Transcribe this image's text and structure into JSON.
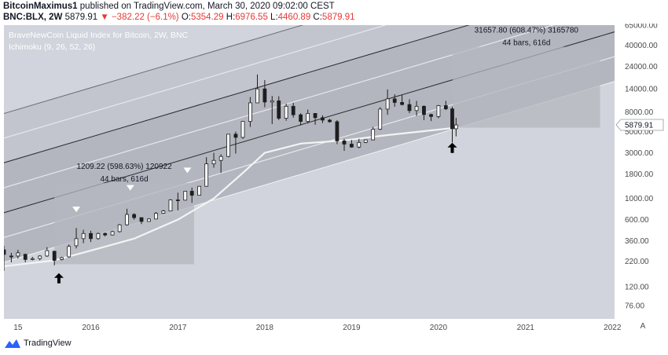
{
  "header": {
    "author": "BitcoinMaximus1",
    "published_text": "published on TradingView.com, March 30, 2020 09:02:00 CEST",
    "symbol": "BNC:BLX, 2W",
    "last": "5879.91",
    "change": "−382.22 (−6.1%)",
    "o_label": "O:",
    "o_value": "5354.29",
    "h_label": "H:",
    "h_value": "6976.55",
    "l_label": "L:",
    "l_value": "4460.89",
    "c_label": "C:",
    "c_value": "5879.91",
    "change_arrow": "▼"
  },
  "branding": {
    "name": "TradingView"
  },
  "colors": {
    "plot_bg": "#d1d4dc",
    "channel_dark": "#b3b6bf",
    "channel_mid": "#c2c5cd",
    "box_fill": "#b4b7bf",
    "candle": "#1e1e1e",
    "ma_line": "#f4f4f4",
    "price_tag": "#ffffff",
    "text_dark": "#131722"
  },
  "chart_data": {
    "type": "candlestick",
    "title": "BraveNewCoin Liquid Index for Bitcoin, 2W, BNC",
    "indicator": "Ichimoku (9, 26, 52, 26)",
    "y_scale": "log",
    "ylim": [
      55,
      65000
    ],
    "xlim": [
      "2015-01-01",
      "2022-01-10"
    ],
    "y_ticks": [
      "76.00",
      "120.00",
      "220.00",
      "360.00",
      "600.00",
      "1000.00",
      "1800.00",
      "3000.00",
      "5000.00",
      "8000.00",
      "14000.00",
      "24000.00",
      "40000.00",
      "65000.00"
    ],
    "x_ticks": [
      {
        "date": "2015-03-01",
        "label": "15"
      },
      {
        "date": "2016-01-01",
        "label": "2016"
      },
      {
        "date": "2017-01-01",
        "label": "2017"
      },
      {
        "date": "2018-01-01",
        "label": "2018"
      },
      {
        "date": "2019-01-01",
        "label": "2019"
      },
      {
        "date": "2020-01-01",
        "label": "2020"
      },
      {
        "date": "2021-01-01",
        "label": "2021"
      },
      {
        "date": "2022-01-01",
        "label": "2022"
      }
    ],
    "axis_badge": "A",
    "last_price_label": "5879.91",
    "last_price": 5879.91,
    "ma": [
      [
        "2015-01-01",
        195
      ],
      [
        "2015-08-01",
        225
      ],
      [
        "2016-01-01",
        285
      ],
      [
        "2016-07-01",
        380
      ],
      [
        "2017-01-01",
        600
      ],
      [
        "2017-06-01",
        1000
      ],
      [
        "2017-10-01",
        1850
      ],
      [
        "2018-01-01",
        3000
      ],
      [
        "2018-06-01",
        3750
      ],
      [
        "2018-12-01",
        4050
      ],
      [
        "2019-06-01",
        4600
      ],
      [
        "2020-01-01",
        5250
      ],
      [
        "2020-03-15",
        5500
      ]
    ],
    "candles": [
      [
        "2015-01-01",
        290,
        320,
        175,
        260
      ],
      [
        "2015-02-01",
        250,
        270,
        215,
        245
      ],
      [
        "2015-03-01",
        250,
        290,
        235,
        270
      ],
      [
        "2015-04-01",
        260,
        265,
        215,
        230
      ],
      [
        "2015-05-01",
        230,
        245,
        225,
        235
      ],
      [
        "2015-06-01",
        235,
        255,
        225,
        250
      ],
      [
        "2015-07-01",
        250,
        310,
        245,
        285
      ],
      [
        "2015-08-01",
        280,
        285,
        200,
        225
      ],
      [
        "2015-09-01",
        230,
        245,
        225,
        240
      ],
      [
        "2015-10-01",
        245,
        330,
        240,
        315
      ],
      [
        "2015-11-01",
        320,
        490,
        300,
        380
      ],
      [
        "2015-12-01",
        380,
        470,
        340,
        430
      ],
      [
        "2016-01-01",
        430,
        460,
        350,
        380
      ],
      [
        "2016-02-01",
        380,
        440,
        370,
        430
      ],
      [
        "2016-03-01",
        430,
        440,
        400,
        415
      ],
      [
        "2016-04-01",
        415,
        460,
        410,
        450
      ],
      [
        "2016-05-01",
        450,
        540,
        440,
        530
      ],
      [
        "2016-06-01",
        530,
        780,
        520,
        680
      ],
      [
        "2016-07-01",
        680,
        700,
        600,
        630
      ],
      [
        "2016-08-01",
        630,
        630,
        540,
        575
      ],
      [
        "2016-09-01",
        575,
        620,
        570,
        610
      ],
      [
        "2016-10-01",
        610,
        720,
        605,
        700
      ],
      [
        "2016-11-01",
        700,
        760,
        690,
        740
      ],
      [
        "2016-12-01",
        740,
        980,
        740,
        965
      ],
      [
        "2017-01-01",
        965,
        1150,
        750,
        960
      ],
      [
        "2017-02-01",
        960,
        1200,
        950,
        1190
      ],
      [
        "2017-03-01",
        1190,
        1300,
        900,
        1080
      ],
      [
        "2017-04-01",
        1080,
        1350,
        1070,
        1340
      ],
      [
        "2017-05-01",
        1340,
        2700,
        1330,
        2300
      ],
      [
        "2017-06-01",
        2300,
        3000,
        2100,
        2500
      ],
      [
        "2017-07-01",
        2500,
        2900,
        1850,
        2750
      ],
      [
        "2017-08-01",
        2750,
        4700,
        2700,
        4700
      ],
      [
        "2017-09-01",
        4700,
        5000,
        2950,
        4350
      ],
      [
        "2017-10-01",
        4350,
        6400,
        4200,
        6400
      ],
      [
        "2017-11-01",
        6400,
        11500,
        5600,
        10000
      ],
      [
        "2017-12-01",
        10000,
        19800,
        10000,
        14000
      ],
      [
        "2018-01-01",
        14000,
        17300,
        9000,
        10200
      ],
      [
        "2018-02-01",
        10200,
        11800,
        6000,
        10500
      ],
      [
        "2018-03-01",
        10500,
        11700,
        6600,
        6900
      ],
      [
        "2018-04-01",
        6900,
        9800,
        6500,
        9200
      ],
      [
        "2018-05-01",
        9200,
        10000,
        7000,
        7500
      ],
      [
        "2018-06-01",
        7500,
        7800,
        5800,
        6400
      ],
      [
        "2018-07-01",
        6400,
        8500,
        6100,
        7750
      ],
      [
        "2018-08-01",
        7750,
        7800,
        5900,
        7000
      ],
      [
        "2018-09-01",
        7000,
        7400,
        6150,
        6600
      ],
      [
        "2018-10-01",
        6600,
        6800,
        6200,
        6350
      ],
      [
        "2018-11-01",
        6350,
        6600,
        3700,
        4000
      ],
      [
        "2018-12-01",
        4000,
        4200,
        3150,
        3700
      ],
      [
        "2019-01-01",
        3700,
        4100,
        3400,
        3450
      ],
      [
        "2019-02-01",
        3450,
        4200,
        3350,
        3850
      ],
      [
        "2019-03-01",
        3850,
        4150,
        3800,
        4100
      ],
      [
        "2019-04-01",
        4100,
        5600,
        4050,
        5300
      ],
      [
        "2019-05-01",
        5300,
        9000,
        5200,
        8600
      ],
      [
        "2019-06-01",
        8600,
        13800,
        7500,
        11000
      ],
      [
        "2019-07-01",
        11000,
        12300,
        9100,
        10100
      ],
      [
        "2019-08-01",
        10100,
        12200,
        9400,
        9600
      ],
      [
        "2019-09-01",
        9600,
        10900,
        7800,
        8300
      ],
      [
        "2019-10-01",
        8300,
        10500,
        7300,
        9200
      ],
      [
        "2019-11-01",
        9200,
        9400,
        6600,
        7550
      ],
      [
        "2019-12-01",
        7550,
        7700,
        6450,
        7200
      ],
      [
        "2020-01-01",
        7200,
        9500,
        6900,
        9350
      ],
      [
        "2020-02-01",
        9350,
        10500,
        8400,
        8650
      ],
      [
        "2020-02-28",
        8650,
        9100,
        3850,
        5360
      ],
      [
        "2020-03-15",
        5354.29,
        6976.55,
        4460.89,
        5879.91
      ]
    ],
    "channel": {
      "base_line": [
        [
          "2015-01-01",
          215
        ],
        [
          "2022-01-01",
          16500
        ]
      ],
      "line_ratios": [
        1,
        3.3,
        11,
        36
      ]
    },
    "boxes": [
      {
        "x0": "2015-08-01",
        "x1": "2017-03-10",
        "y0": 205,
        "y1": 1450,
        "label_main": "1209.22 (598.63%) 120922",
        "label_sub": "44 bars, 616d"
      },
      {
        "x0": "2020-03-01",
        "x1": "2021-11-10",
        "y0": 5500,
        "y1": 38500,
        "label_main": "31657.80 (608.47%) 3165780",
        "label_sub": "44 bars, 616d"
      }
    ],
    "markers_down": [
      {
        "date": "2015-11-01",
        "value": 760
      },
      {
        "date": "2016-06-15",
        "value": 1280
      },
      {
        "date": "2017-02-10",
        "value": 1950
      }
    ],
    "markers_up": [
      {
        "date": "2015-08-20",
        "value": 145
      },
      {
        "date": "2020-02-28",
        "value": 3350
      }
    ]
  }
}
